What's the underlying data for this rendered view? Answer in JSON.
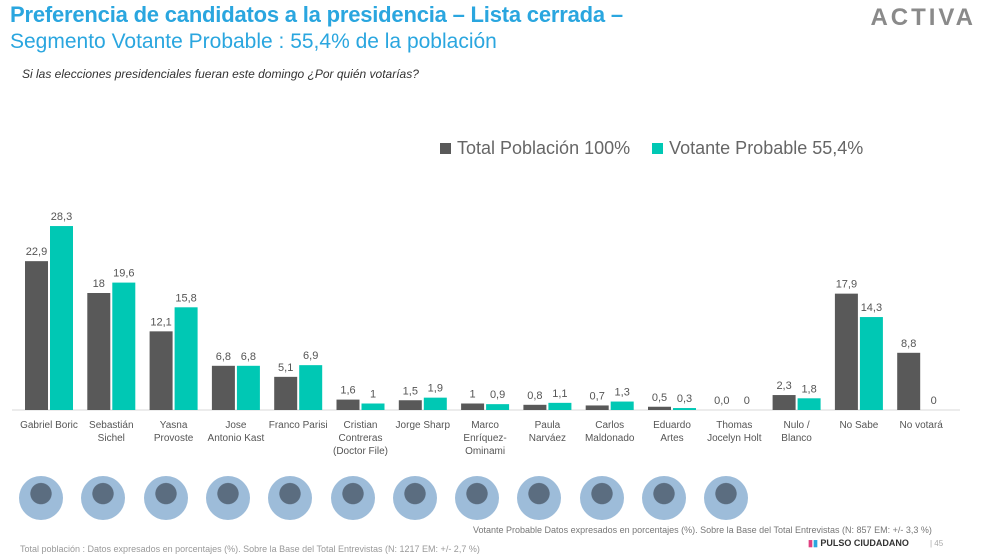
{
  "header": {
    "title": "Preferencia de candidatos a la presidencia – Lista cerrada –",
    "subtitle": "Segmento Votante Probable : 55,4% de la población",
    "question": "Si las elecciones presidenciales fueran este domingo ¿Por quién votarías?",
    "logo": "ACTIVA"
  },
  "chart_data": {
    "type": "bar",
    "categories": [
      "Gabriel Boric",
      "Sebastián Sichel",
      "Yasna Provoste",
      "Jose Antonio Kast",
      "Franco Parisi",
      "Cristian Contreras (Doctor File)",
      "Jorge Sharp",
      "Marco Enríquez-Ominami",
      "Paula Narváez",
      "Carlos Maldonado",
      "Eduardo Artes",
      "Thomas Jocelyn Holt",
      "Nulo / Blanco",
      "No Sabe",
      "No votará"
    ],
    "category_lines": [
      [
        "Gabriel Boric"
      ],
      [
        "Sebastián",
        "Sichel"
      ],
      [
        "Yasna",
        "Provoste"
      ],
      [
        "Jose",
        "Antonio Kast"
      ],
      [
        "Franco Parisi"
      ],
      [
        "Cristian",
        "Contreras",
        "(Doctor File)"
      ],
      [
        "Jorge Sharp"
      ],
      [
        "Marco",
        "Enríquez-",
        "Ominami"
      ],
      [
        "Paula",
        "Narváez"
      ],
      [
        "Carlos",
        "Maldonado"
      ],
      [
        "Eduardo",
        "Artes"
      ],
      [
        "Thomas",
        "Jocelyn Holt"
      ],
      [
        "Nulo /",
        "Blanco"
      ],
      [
        "No Sabe"
      ],
      [
        "No votará"
      ]
    ],
    "series": [
      {
        "name": "Total Población 100%",
        "color": "#595959",
        "values": [
          22.9,
          18,
          12.1,
          6.8,
          5.1,
          1.6,
          1.5,
          1,
          0.8,
          0.7,
          0.5,
          0.0,
          2.3,
          17.9,
          8.8
        ],
        "labels": [
          "22,9",
          "18",
          "12,1",
          "6,8",
          "5,1",
          "1,6",
          "1,5",
          "1",
          "0,8",
          "0,7",
          "0,5",
          "0,0",
          "2,3",
          "17,9",
          "8,8"
        ]
      },
      {
        "name": "Votante Probable 55,4%",
        "color": "#00c8b4",
        "values": [
          28.3,
          19.6,
          15.8,
          6.8,
          6.9,
          1,
          1.9,
          0.9,
          1.1,
          1.3,
          0.3,
          0,
          1.8,
          14.3,
          0
        ],
        "labels": [
          "28,3",
          "19,6",
          "15,8",
          "6,8",
          "6,9",
          "1",
          "1,9",
          "0,9",
          "1,1",
          "1,3",
          "0,3",
          "0",
          "1,8",
          "14,3",
          "0"
        ]
      }
    ],
    "legend": "top-right",
    "grid": false
  },
  "footer": {
    "note_probable": "Votante Probable Datos expresados en porcentajes (%). Sobre la Base del Total Entrevistas (N: 857  EM: +/-  3,3 %)",
    "note_total": "Total población : Datos expresados en porcentajes (%). Sobre la Base del Total Entrevistas (N: 1217  EM: +/- 2,7 %)",
    "brand": "PULSO CIUDADANO",
    "page": "| 45"
  }
}
